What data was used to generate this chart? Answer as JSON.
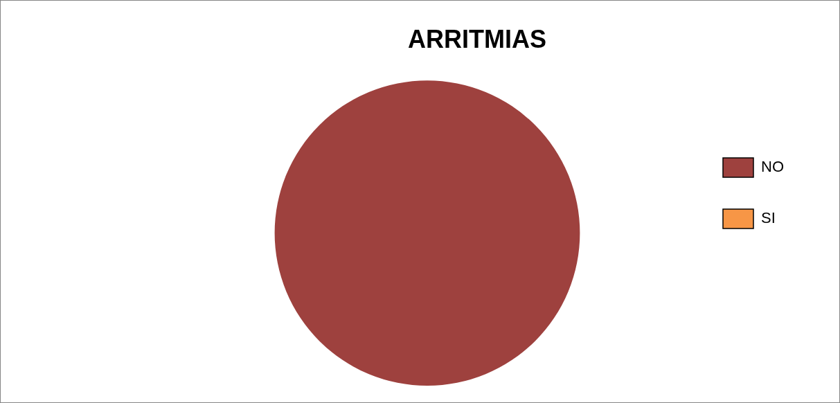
{
  "chart_data": {
    "type": "pie",
    "title": "ARRITMIAS",
    "categories": [
      "NO",
      "SI"
    ],
    "values": [
      100,
      0
    ],
    "colors": [
      "#9e413e",
      "#f79646"
    ],
    "legend": "right"
  }
}
